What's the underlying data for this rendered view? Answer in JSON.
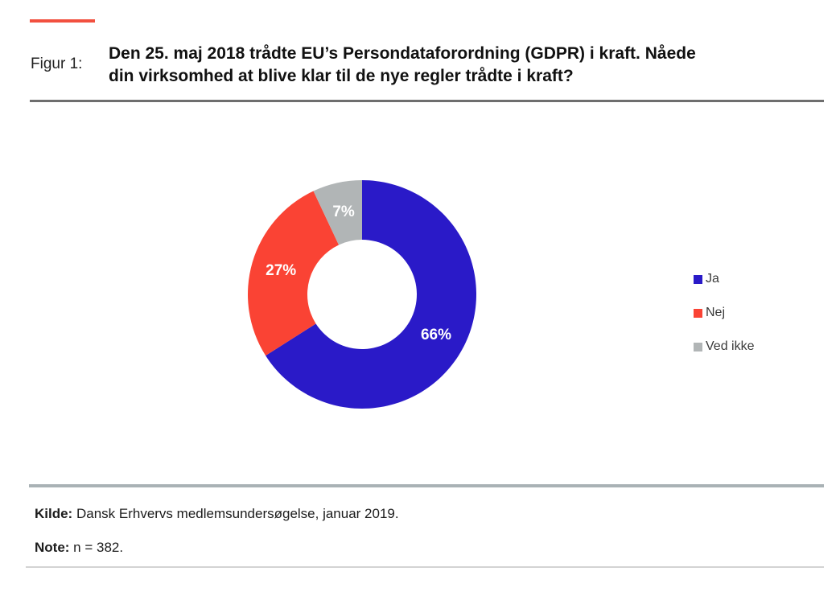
{
  "figure": {
    "label": "Figur 1:",
    "title": "Den 25. maj 2018 trådte EU’s Persondataforordning (GDPR) i kraft. Nåede din virksomhed at blive klar til de nye regler trådte i kraft?"
  },
  "chart_data": {
    "type": "pie",
    "subtype": "donut",
    "title": "Den 25. maj 2018 trådte EU’s Persondataforordning (GDPR) i kraft. Nåede din virksomhed at blive klar til de nye regler trådte i kraft?",
    "categories": [
      "Ja",
      "Nej",
      "Ved ikke"
    ],
    "values": [
      66,
      27,
      7
    ],
    "data_labels": [
      "66%",
      "27%",
      "7%"
    ],
    "colors": [
      "#2a1ac8",
      "#fa4334",
      "#b1b5b6"
    ],
    "legend_position": "right",
    "start_angle_deg": 0,
    "direction": "clockwise",
    "inner_radius_ratio": 0.48
  },
  "footer": {
    "source_label": "Kilde:",
    "source_text": " Dansk Erhvervs medlemsundersøgelse, januar 2019.",
    "note_label": "Note:",
    "note_text": " n = 382."
  },
  "accent": {
    "dash_color": "#f2503f",
    "title_divider_color": "#6e6e6e",
    "footer_divider_color": "#a9b2b5"
  }
}
